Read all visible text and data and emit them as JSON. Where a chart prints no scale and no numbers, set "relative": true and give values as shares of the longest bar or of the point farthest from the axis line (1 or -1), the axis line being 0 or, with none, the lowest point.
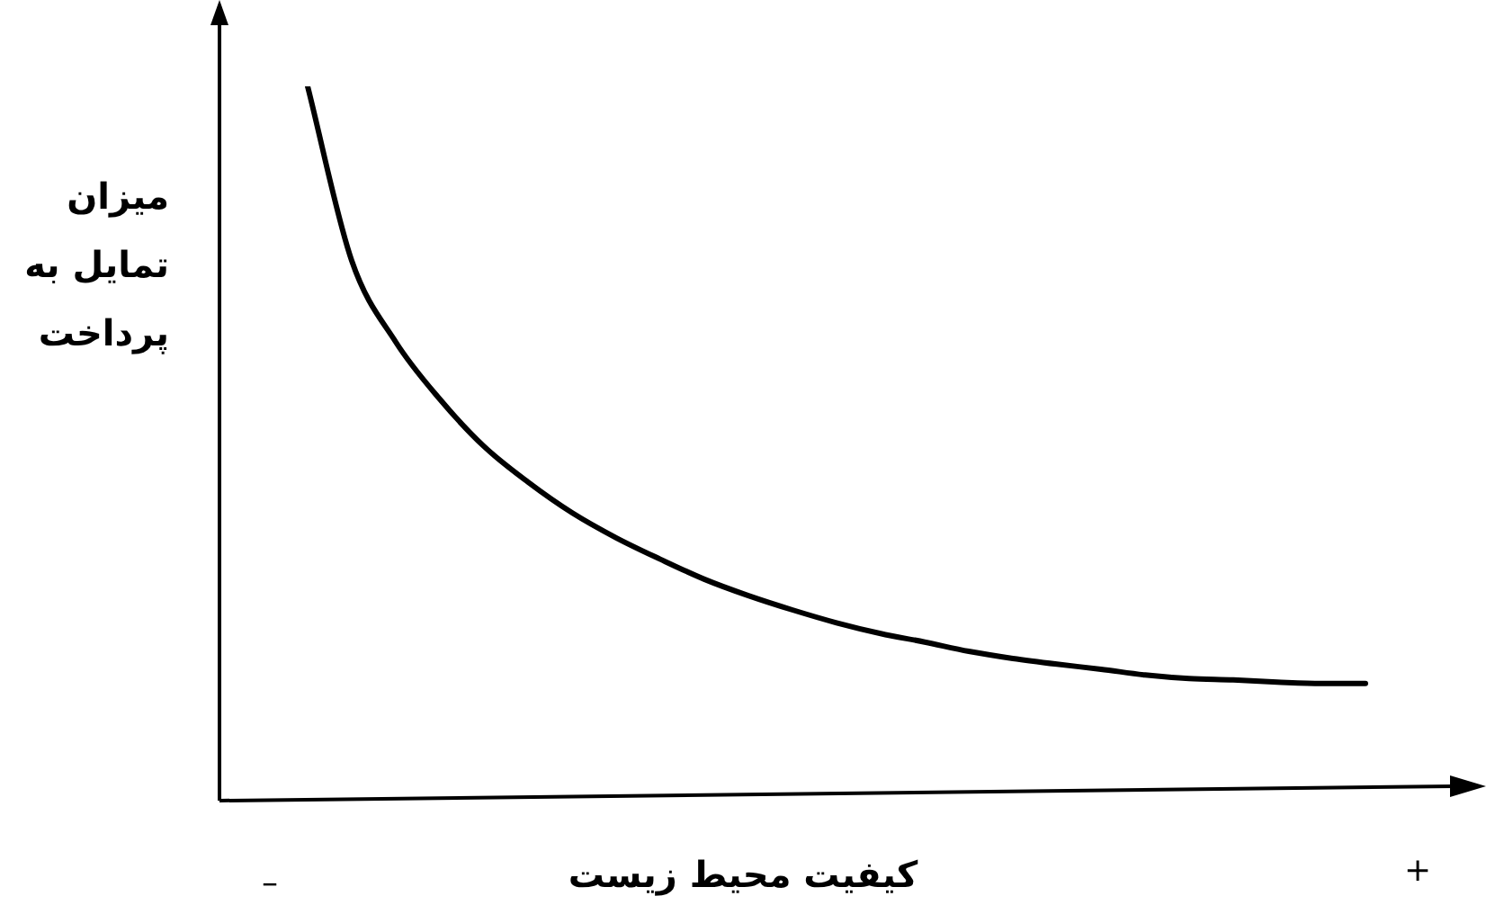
{
  "chart_data": {
    "type": "line",
    "relative": true,
    "xlabel": "کیفیت محیط زیست",
    "ylabel": "میزان تمایل به پرداخت",
    "annotations": [
      "–",
      "+"
    ],
    "categories": [
      null,
      null,
      null,
      null,
      null,
      null,
      null,
      null,
      null,
      null,
      null,
      null,
      null,
      null,
      null,
      null,
      null,
      null,
      null,
      null,
      null,
      null,
      null,
      null,
      null,
      null,
      null,
      null,
      null
    ],
    "series": [
      {
        "color": "#000000",
        "values": [
          null,
          null,
          1,
          0.756,
          0.642,
          0.562,
          0.496,
          0.446,
          0.403,
          0.368,
          0.338,
          0.31,
          0.287,
          0.267,
          0.249,
          0.234,
          0.222,
          0.209,
          0.199,
          0.191,
          0.184,
          0.176,
          0.171,
          0.169,
          0.166,
          0.164,
          0.164,
          null,
          null
        ]
      }
    ],
    "grid": false,
    "legend": false,
    "tick_labels": false,
    "marker": "none",
    "line_style": "solid"
  }
}
